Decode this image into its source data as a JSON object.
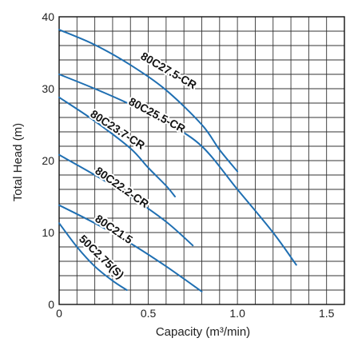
{
  "chart_data": {
    "type": "line",
    "title": "",
    "xlabel": "Capacity (m³/min)",
    "ylabel": "Total Head (m)",
    "xlim": [
      0,
      1.6
    ],
    "ylim": [
      0,
      40
    ],
    "x_ticks": [
      "0",
      "0.5",
      "1.0",
      "1.5"
    ],
    "y_ticks": [
      "0",
      "10",
      "20",
      "30",
      "40"
    ],
    "grid": true,
    "series": [
      {
        "name": "80C27.5-CR",
        "color": "#1f6fb2",
        "points": [
          [
            0,
            38.2
          ],
          [
            0.2,
            36.1
          ],
          [
            0.4,
            33.3
          ],
          [
            0.6,
            29.8
          ],
          [
            0.8,
            25.0
          ],
          [
            0.9,
            21.5
          ],
          [
            1.0,
            18.5
          ]
        ]
      },
      {
        "name": "80C25.5-CR",
        "color": "#1f6fb2",
        "points": [
          [
            0,
            32.0
          ],
          [
            0.2,
            30.0
          ],
          [
            0.4,
            27.8
          ],
          [
            0.6,
            25.3
          ],
          [
            0.8,
            22.0
          ],
          [
            1.0,
            16.0
          ],
          [
            1.2,
            10.0
          ],
          [
            1.33,
            5.5
          ]
        ]
      },
      {
        "name": "80C23.7-CR",
        "color": "#1f6fb2",
        "points": [
          [
            0,
            28.8
          ],
          [
            0.2,
            25.5
          ],
          [
            0.4,
            21.7
          ],
          [
            0.5,
            19.0
          ],
          [
            0.6,
            16.5
          ],
          [
            0.65,
            15.0
          ]
        ]
      },
      {
        "name": "80C22.2-CR",
        "color": "#1f6fb2",
        "points": [
          [
            0,
            20.8
          ],
          [
            0.2,
            18.0
          ],
          [
            0.4,
            15.0
          ],
          [
            0.6,
            11.5
          ],
          [
            0.75,
            8.2
          ]
        ]
      },
      {
        "name": "80C21.5",
        "color": "#1f6fb2",
        "points": [
          [
            0,
            13.8
          ],
          [
            0.2,
            11.3
          ],
          [
            0.4,
            8.5
          ],
          [
            0.6,
            5.3
          ],
          [
            0.8,
            1.8
          ]
        ]
      },
      {
        "name": "50C2.75(S)",
        "color": "#1f6fb2",
        "points": [
          [
            0,
            11.3
          ],
          [
            0.1,
            8.0
          ],
          [
            0.2,
            5.3
          ],
          [
            0.3,
            3.3
          ],
          [
            0.38,
            2.0
          ]
        ]
      }
    ],
    "labels": [
      {
        "text": "80C27.5-CR",
        "series": 0
      },
      {
        "text": "80C25.5-CR",
        "series": 1
      },
      {
        "text": "80C23.7-CR",
        "series": 2
      },
      {
        "text": "80C22.2-CR",
        "series": 3
      },
      {
        "text": "80C21.5",
        "series": 4
      },
      {
        "text": "50C2.75(S)",
        "series": 5
      }
    ]
  }
}
